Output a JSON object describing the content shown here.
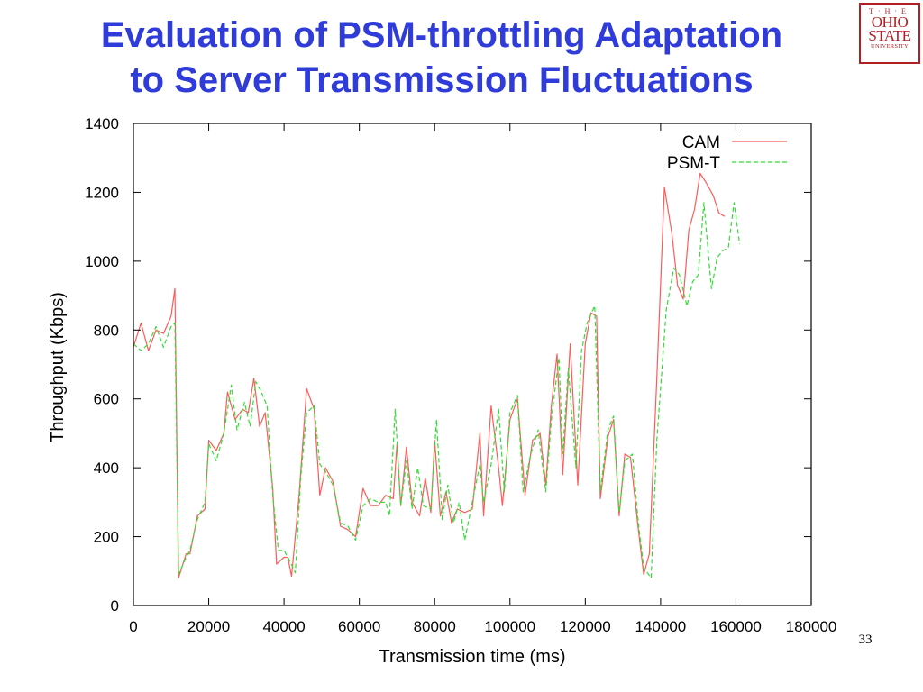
{
  "slide": {
    "title_line1": "Evaluation of PSM-throttling Adaptation",
    "title_line2": "to Server Transmission Fluctuations",
    "page_number": "33",
    "logo": {
      "the": "T·H·E",
      "line1": "OHIO",
      "line2": "STATE",
      "line3": "UNIVERSITY"
    }
  },
  "colors": {
    "title": "#2f3cd9",
    "cam": "#ff5a5a",
    "psm_t": "#33dd33",
    "logo": "#b11e23"
  },
  "chart_data": {
    "type": "line",
    "title": "",
    "xlabel": "Transmission time (ms)",
    "ylabel": "Throughput (Kbps)",
    "xlim": [
      0,
      180000
    ],
    "ylim": [
      0,
      1400
    ],
    "xticks": [
      0,
      20000,
      40000,
      60000,
      80000,
      100000,
      120000,
      140000,
      160000,
      180000
    ],
    "yticks": [
      0,
      200,
      400,
      600,
      800,
      1000,
      1200,
      1400
    ],
    "grid": false,
    "legend_position": "top-right",
    "series": [
      {
        "name": "CAM",
        "style": "solid",
        "points": [
          [
            0,
            750
          ],
          [
            2000,
            820
          ],
          [
            4000,
            740
          ],
          [
            6000,
            800
          ],
          [
            8000,
            790
          ],
          [
            10000,
            840
          ],
          [
            11000,
            920
          ],
          [
            12000,
            80
          ],
          [
            14000,
            150
          ],
          [
            15000,
            150
          ],
          [
            17000,
            260
          ],
          [
            19000,
            280
          ],
          [
            20000,
            480
          ],
          [
            22000,
            450
          ],
          [
            24000,
            500
          ],
          [
            25000,
            620
          ],
          [
            27000,
            540
          ],
          [
            29000,
            570
          ],
          [
            30500,
            560
          ],
          [
            32000,
            660
          ],
          [
            33500,
            520
          ],
          [
            35000,
            560
          ],
          [
            37000,
            340
          ],
          [
            38000,
            120
          ],
          [
            40000,
            140
          ],
          [
            41000,
            140
          ],
          [
            42000,
            85
          ],
          [
            44000,
            320
          ],
          [
            46000,
            630
          ],
          [
            48000,
            570
          ],
          [
            49500,
            320
          ],
          [
            51000,
            400
          ],
          [
            53000,
            360
          ],
          [
            55000,
            230
          ],
          [
            57000,
            220
          ],
          [
            59000,
            200
          ],
          [
            61000,
            340
          ],
          [
            63000,
            290
          ],
          [
            65000,
            290
          ],
          [
            67000,
            320
          ],
          [
            69000,
            310
          ],
          [
            70000,
            470
          ],
          [
            71000,
            290
          ],
          [
            72500,
            460
          ],
          [
            74000,
            300
          ],
          [
            76000,
            260
          ],
          [
            77500,
            370
          ],
          [
            79000,
            270
          ],
          [
            80000,
            480
          ],
          [
            81500,
            260
          ],
          [
            83000,
            330
          ],
          [
            84500,
            240
          ],
          [
            86000,
            280
          ],
          [
            88000,
            270
          ],
          [
            90000,
            280
          ],
          [
            92000,
            500
          ],
          [
            93000,
            260
          ],
          [
            95000,
            580
          ],
          [
            97000,
            400
          ],
          [
            98000,
            290
          ],
          [
            100000,
            540
          ],
          [
            102000,
            600
          ],
          [
            104000,
            320
          ],
          [
            106000,
            480
          ],
          [
            108000,
            500
          ],
          [
            109500,
            350
          ],
          [
            111000,
            580
          ],
          [
            112500,
            730
          ],
          [
            114000,
            380
          ],
          [
            116000,
            760
          ],
          [
            118000,
            350
          ],
          [
            120000,
            760
          ],
          [
            121500,
            850
          ],
          [
            123000,
            840
          ],
          [
            124000,
            310
          ],
          [
            126000,
            490
          ],
          [
            127500,
            540
          ],
          [
            129000,
            260
          ],
          [
            130500,
            440
          ],
          [
            132000,
            430
          ],
          [
            134000,
            230
          ],
          [
            135500,
            90
          ],
          [
            137000,
            150
          ],
          [
            139000,
            660
          ],
          [
            141000,
            1215
          ],
          [
            143000,
            1080
          ],
          [
            144500,
            930
          ],
          [
            146000,
            890
          ],
          [
            147500,
            1090
          ],
          [
            149000,
            1150
          ],
          [
            150500,
            1255
          ],
          [
            152000,
            1230
          ],
          [
            154000,
            1190
          ],
          [
            155500,
            1140
          ],
          [
            157000,
            1130
          ]
        ]
      },
      {
        "name": "PSM-T",
        "style": "dashed",
        "points": [
          [
            0,
            760
          ],
          [
            2000,
            740
          ],
          [
            4000,
            760
          ],
          [
            6000,
            810
          ],
          [
            8000,
            750
          ],
          [
            10000,
            810
          ],
          [
            11000,
            820
          ],
          [
            12000,
            90
          ],
          [
            14000,
            140
          ],
          [
            15000,
            160
          ],
          [
            17000,
            250
          ],
          [
            19000,
            300
          ],
          [
            20000,
            470
          ],
          [
            22000,
            420
          ],
          [
            24000,
            500
          ],
          [
            26000,
            640
          ],
          [
            27500,
            510
          ],
          [
            29500,
            590
          ],
          [
            31000,
            520
          ],
          [
            32500,
            650
          ],
          [
            34000,
            620
          ],
          [
            35500,
            580
          ],
          [
            37000,
            320
          ],
          [
            38500,
            160
          ],
          [
            40000,
            160
          ],
          [
            41500,
            130
          ],
          [
            43000,
            95
          ],
          [
            44500,
            380
          ],
          [
            46000,
            560
          ],
          [
            48000,
            580
          ],
          [
            49500,
            410
          ],
          [
            51000,
            390
          ],
          [
            53000,
            350
          ],
          [
            55000,
            240
          ],
          [
            57000,
            230
          ],
          [
            59000,
            190
          ],
          [
            61000,
            290
          ],
          [
            63000,
            310
          ],
          [
            65000,
            300
          ],
          [
            67000,
            300
          ],
          [
            68000,
            260
          ],
          [
            69500,
            570
          ],
          [
            71000,
            290
          ],
          [
            72500,
            420
          ],
          [
            74000,
            280
          ],
          [
            75500,
            400
          ],
          [
            77000,
            290
          ],
          [
            79000,
            280
          ],
          [
            80500,
            540
          ],
          [
            82000,
            250
          ],
          [
            83500,
            350
          ],
          [
            85000,
            240
          ],
          [
            86500,
            300
          ],
          [
            88000,
            190
          ],
          [
            90000,
            300
          ],
          [
            92000,
            410
          ],
          [
            93000,
            300
          ],
          [
            95000,
            410
          ],
          [
            97000,
            570
          ],
          [
            98500,
            330
          ],
          [
            100000,
            560
          ],
          [
            102000,
            610
          ],
          [
            103500,
            330
          ],
          [
            105500,
            440
          ],
          [
            107500,
            510
          ],
          [
            109500,
            330
          ],
          [
            111000,
            540
          ],
          [
            113000,
            720
          ],
          [
            114000,
            440
          ],
          [
            115500,
            690
          ],
          [
            117500,
            400
          ],
          [
            119000,
            740
          ],
          [
            120500,
            820
          ],
          [
            122500,
            870
          ],
          [
            124000,
            330
          ],
          [
            126000,
            510
          ],
          [
            127500,
            550
          ],
          [
            129000,
            270
          ],
          [
            130500,
            420
          ],
          [
            132500,
            440
          ],
          [
            134000,
            250
          ],
          [
            135500,
            110
          ],
          [
            137500,
            80
          ],
          [
            139000,
            480
          ],
          [
            141500,
            860
          ],
          [
            143500,
            980
          ],
          [
            145000,
            960
          ],
          [
            147000,
            870
          ],
          [
            148500,
            940
          ],
          [
            150000,
            960
          ],
          [
            151500,
            1170
          ],
          [
            153500,
            920
          ],
          [
            155000,
            1010
          ],
          [
            156500,
            1030
          ],
          [
            158000,
            1040
          ],
          [
            159500,
            1170
          ],
          [
            161000,
            1050
          ]
        ]
      }
    ]
  }
}
